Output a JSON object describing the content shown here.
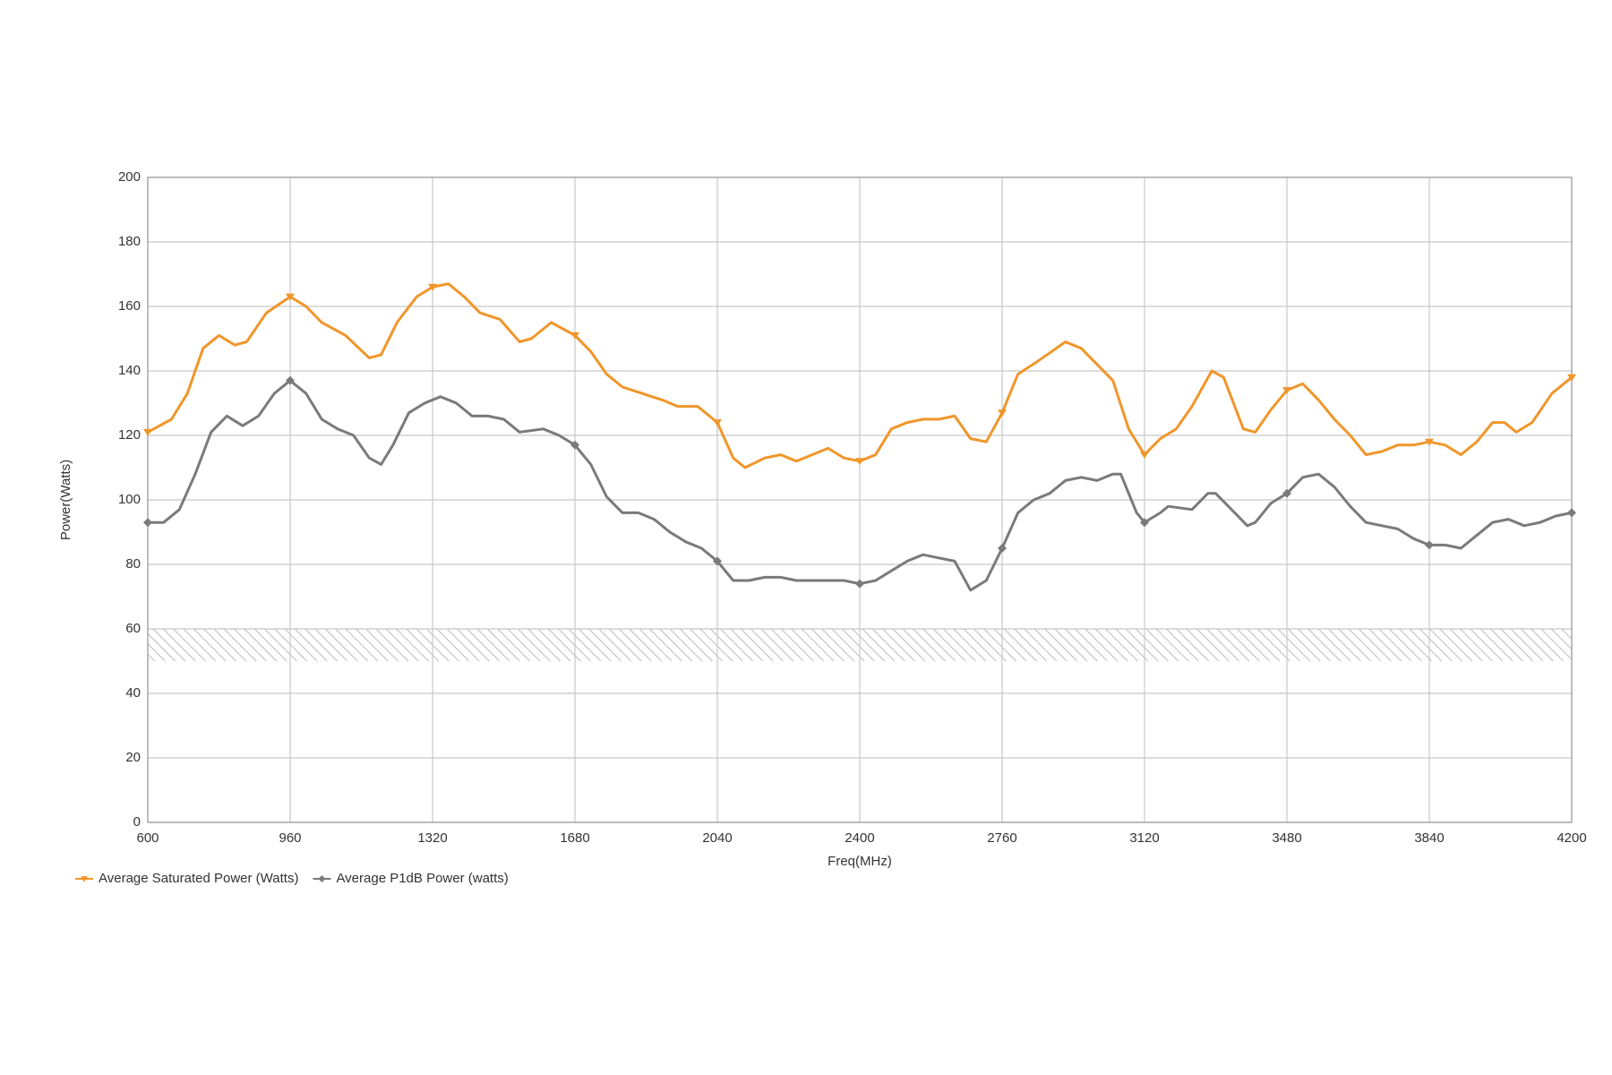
{
  "chart_data": {
    "type": "line",
    "x_label": "Freq(MHz)",
    "y_label": "Power(Watts)",
    "xlim": [
      600,
      4200
    ],
    "xticks": [
      600,
      960,
      1320,
      1680,
      2040,
      2400,
      2760,
      3120,
      3480,
      3840,
      4200
    ],
    "ylim": [
      0,
      200
    ],
    "yticks": [
      0,
      20,
      40,
      60,
      80,
      100,
      120,
      140,
      160,
      180,
      200
    ],
    "grid": true,
    "legend": "bottom-left",
    "band": [
      50,
      60
    ],
    "series": [
      {
        "name": "Average Saturated Power (Watts)",
        "color": "#f0962a",
        "marker": "triangle",
        "x": [
          600,
          660,
          700,
          740,
          780,
          820,
          850,
          900,
          960,
          1000,
          1040,
          1100,
          1160,
          1190,
          1230,
          1280,
          1320,
          1360,
          1400,
          1440,
          1490,
          1540,
          1570,
          1620,
          1680,
          1720,
          1760,
          1800,
          1850,
          1900,
          1940,
          1990,
          2020,
          2040,
          2080,
          2110,
          2160,
          2200,
          2240,
          2280,
          2320,
          2360,
          2400,
          2440,
          2480,
          2520,
          2560,
          2600,
          2640,
          2680,
          2720,
          2760,
          2800,
          2850,
          2920,
          2960,
          3000,
          3040,
          3080,
          3120,
          3160,
          3200,
          3240,
          3290,
          3320,
          3370,
          3400,
          3440,
          3480,
          3520,
          3560,
          3600,
          3640,
          3680,
          3720,
          3760,
          3800,
          3840,
          3880,
          3920,
          3960,
          4000,
          4030,
          4060,
          4100,
          4150,
          4200
        ],
        "values": [
          121,
          125,
          133,
          147,
          151,
          148,
          149,
          158,
          163,
          160,
          155,
          151,
          144,
          145,
          155,
          163,
          166,
          167,
          163,
          158,
          156,
          149,
          150,
          155,
          151,
          146,
          139,
          135,
          133,
          131,
          129,
          129,
          126,
          124,
          113,
          110,
          113,
          114,
          112,
          114,
          116,
          113,
          112,
          114,
          122,
          124,
          125,
          125,
          126,
          119,
          118,
          127,
          139,
          143,
          149,
          147,
          142,
          137,
          122,
          114,
          119,
          122,
          129,
          140,
          138,
          122,
          121,
          128,
          134,
          136,
          131,
          125,
          120,
          114,
          115,
          117,
          117,
          118,
          117,
          114,
          118,
          124,
          124,
          121,
          124,
          133,
          138
        ]
      },
      {
        "name": "Average P1dB Power (watts)",
        "color": "#7a7a7a",
        "marker": "diamond",
        "x": [
          600,
          640,
          680,
          720,
          760,
          800,
          840,
          880,
          920,
          960,
          1000,
          1040,
          1080,
          1120,
          1160,
          1190,
          1220,
          1260,
          1300,
          1340,
          1380,
          1420,
          1460,
          1500,
          1540,
          1600,
          1640,
          1680,
          1720,
          1760,
          1800,
          1840,
          1880,
          1920,
          1960,
          2000,
          2040,
          2080,
          2120,
          2160,
          2200,
          2240,
          2280,
          2320,
          2360,
          2400,
          2440,
          2480,
          2520,
          2560,
          2600,
          2640,
          2680,
          2720,
          2760,
          2800,
          2840,
          2880,
          2920,
          2960,
          3000,
          3040,
          3060,
          3100,
          3120,
          3160,
          3180,
          3240,
          3280,
          3300,
          3340,
          3380,
          3400,
          3440,
          3480,
          3520,
          3560,
          3600,
          3640,
          3680,
          3720,
          3760,
          3800,
          3840,
          3880,
          3920,
          3960,
          4000,
          4040,
          4080,
          4120,
          4160,
          4200
        ],
        "values": [
          93,
          93,
          97,
          108,
          121,
          126,
          123,
          126,
          133,
          137,
          133,
          125,
          122,
          120,
          113,
          111,
          117,
          127,
          130,
          132,
          130,
          126,
          126,
          125,
          121,
          122,
          120,
          117,
          111,
          101,
          96,
          96,
          94,
          90,
          87,
          85,
          81,
          75,
          75,
          76,
          76,
          75,
          75,
          75,
          75,
          74,
          75,
          78,
          81,
          83,
          82,
          81,
          72,
          75,
          85,
          96,
          100,
          102,
          106,
          107,
          106,
          108,
          108,
          96,
          93,
          96,
          98,
          97,
          102,
          102,
          97,
          92,
          93,
          99,
          102,
          107,
          108,
          104,
          98,
          93,
          92,
          91,
          88,
          86,
          86,
          85,
          89,
          93,
          94,
          92,
          93,
          95,
          96
        ]
      }
    ]
  }
}
